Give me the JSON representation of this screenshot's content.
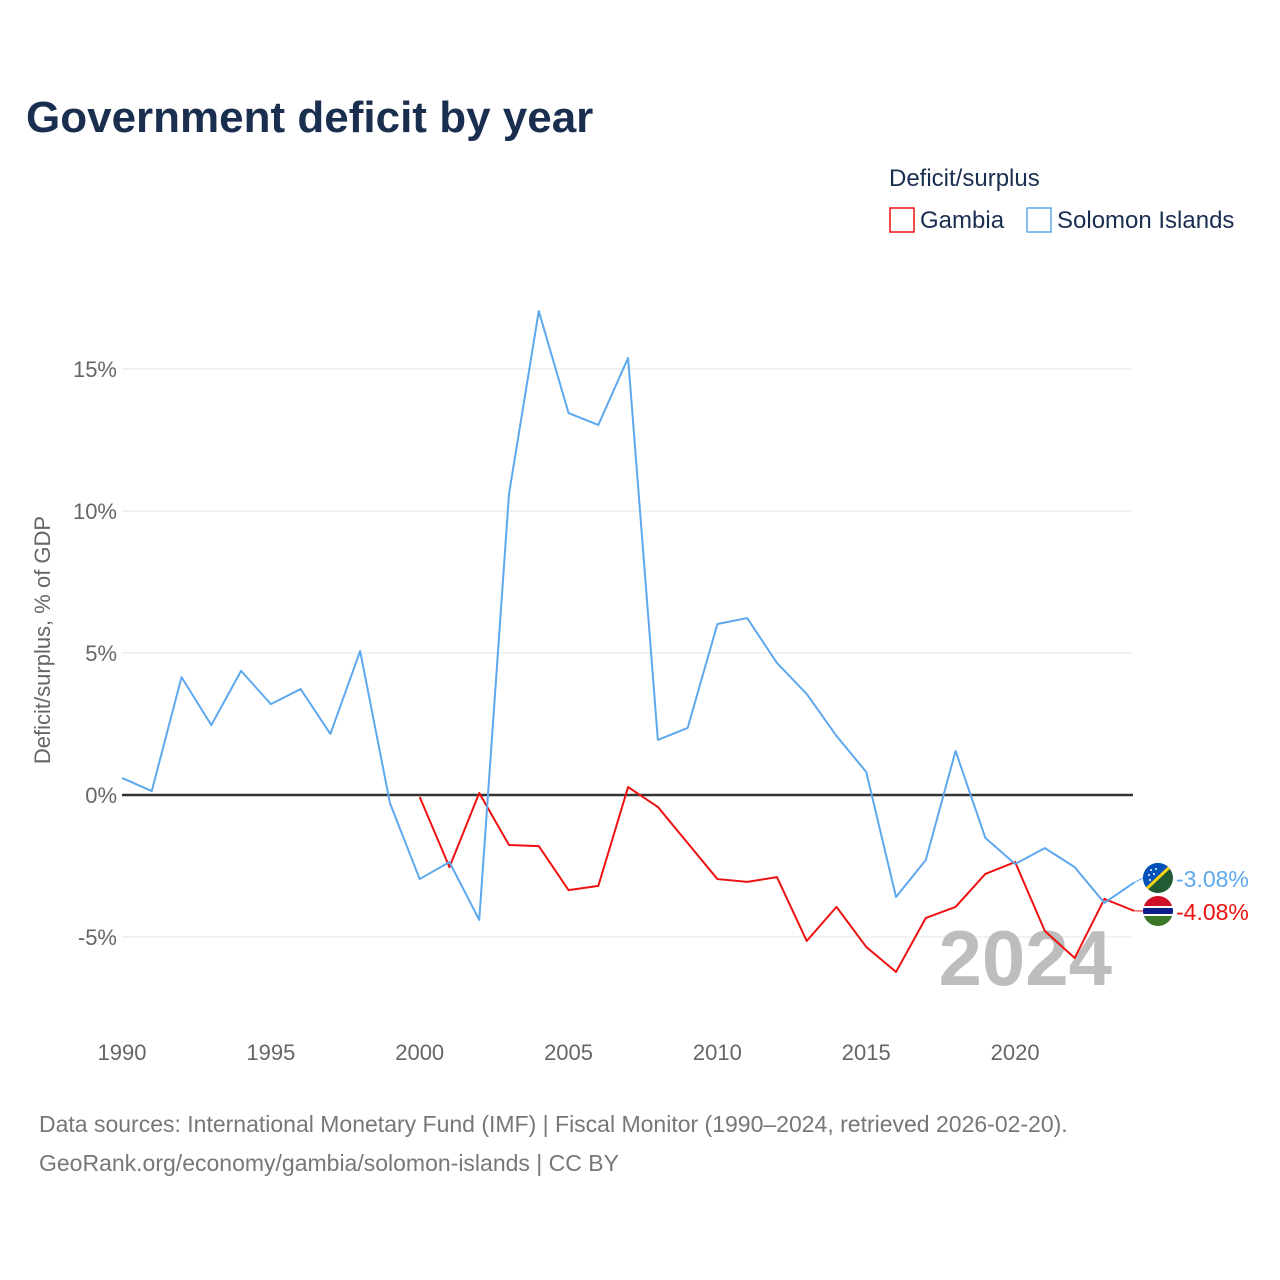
{
  "chart_data": {
    "type": "line",
    "title": "Government deficit by year",
    "ylabel": "Deficit/surplus, % of GDP",
    "xlabel": "",
    "xlim": [
      1990,
      2024
    ],
    "ylim": [
      -7,
      18
    ],
    "x_ticks": [
      1990,
      1995,
      2000,
      2005,
      2010,
      2015,
      2020
    ],
    "y_ticks": [
      {
        "value": 15,
        "label": "15%"
      },
      {
        "value": 10,
        "label": "10%"
      },
      {
        "value": 5,
        "label": "5%"
      },
      {
        "value": 0,
        "label": "0%"
      },
      {
        "value": -5,
        "label": "-5%"
      }
    ],
    "grid": true,
    "legend": {
      "title": "Deficit/surplus",
      "placement": "top-right"
    },
    "current_year": "2024",
    "series": [
      {
        "name": "Gambia",
        "color": "#ee1111",
        "end_label": "-4.08%",
        "flag": "gambia-flag",
        "x": [
          2000,
          2001,
          2002,
          2003,
          2004,
          2005,
          2006,
          2007,
          2008,
          2009,
          2010,
          2011,
          2012,
          2013,
          2014,
          2015,
          2016,
          2017,
          2018,
          2019,
          2020,
          2021,
          2022,
          2023,
          2024
        ],
        "values": [
          -0.07,
          -2.54,
          0.07,
          -1.76,
          -1.8,
          -3.35,
          -3.2,
          0.28,
          -0.42,
          -1.69,
          -2.96,
          -3.06,
          -2.89,
          -5.14,
          -3.94,
          -5.35,
          -6.23,
          -4.33,
          -3.94,
          -2.78,
          -2.36,
          -4.79,
          -5.74,
          -3.66,
          -4.08
        ]
      },
      {
        "name": "Solomon Islands",
        "color": "#5ea8ee",
        "end_label": "-3.08%",
        "flag": "solomon-islands-flag",
        "x": [
          1990,
          1991,
          1992,
          1993,
          1994,
          1995,
          1996,
          1997,
          1998,
          1999,
          2000,
          2001,
          2002,
          2003,
          2004,
          2005,
          2006,
          2007,
          2008,
          2009,
          2010,
          2011,
          2012,
          2013,
          2014,
          2015,
          2016,
          2017,
          2018,
          2019,
          2020,
          2021,
          2022,
          2023,
          2024
        ],
        "values": [
          0.6,
          0.14,
          4.15,
          2.46,
          4.37,
          3.2,
          3.73,
          2.15,
          5.07,
          -0.28,
          -2.96,
          -2.36,
          -4.4,
          10.6,
          17.04,
          13.45,
          13.03,
          15.39,
          1.94,
          2.36,
          6.02,
          6.23,
          4.65,
          3.56,
          2.08,
          0.81,
          -3.59,
          -2.29,
          1.55,
          -1.51,
          -2.43,
          -1.87,
          -2.54,
          -3.8,
          -3.08
        ]
      }
    ]
  },
  "footer": {
    "source_line": "Data sources: International Monetary Fund (IMF) | Fiscal Monitor (1990–2024, retrieved 2026-02-20).",
    "credit_line": "GeoRank.org/economy/gambia/solomon-islands | CC BY"
  }
}
